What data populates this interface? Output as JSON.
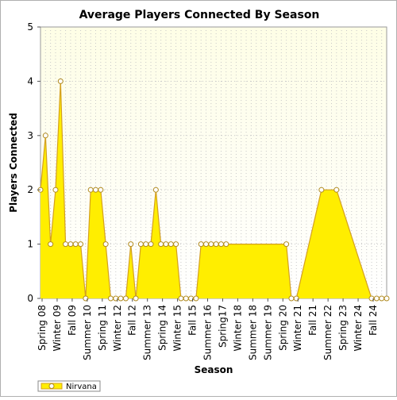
{
  "chart_data": {
    "type": "area",
    "title": "Average Players Connected By Season",
    "xlabel": "Season",
    "ylabel": "Players Connected",
    "ylim": [
      0,
      5
    ],
    "yticks": [
      "0",
      "1",
      "2",
      "3",
      "4",
      "5"
    ],
    "grid": true,
    "legend_position": "bottom-left",
    "x_tick_labels": [
      "Spring 08",
      "Winter 09",
      "Fall 09",
      "Summer 10",
      "Spring 11",
      "Winter 12",
      "Fall 12",
      "Summer 13",
      "Spring 14",
      "Winter 15",
      "Fall 15",
      "Summer 16",
      "Spring17",
      "Winter 18",
      "Summer 18",
      "Summer 19",
      "Spring 20",
      "Winter 21",
      "Fall 21",
      "Summer 22",
      "Spring 23",
      "Winter 24",
      "Fall 24"
    ],
    "series": [
      {
        "name": "Nirvana",
        "color": "#ffee00",
        "line_color": "#d4a020",
        "values": [
          2,
          3,
          1,
          2,
          4,
          1,
          1,
          1,
          1,
          0,
          2,
          2,
          2,
          1,
          0,
          0,
          0,
          0,
          1,
          0,
          1,
          1,
          1,
          2,
          1,
          1,
          1,
          1,
          0,
          0,
          0,
          0,
          1,
          1,
          1,
          1,
          1,
          1,
          null,
          null,
          null,
          null,
          null,
          null,
          null,
          null,
          null,
          null,
          null,
          1,
          0,
          0,
          null,
          null,
          null,
          null,
          2,
          null,
          null,
          2,
          null,
          null,
          null,
          null,
          null,
          null,
          0,
          0,
          0,
          0
        ]
      }
    ]
  }
}
